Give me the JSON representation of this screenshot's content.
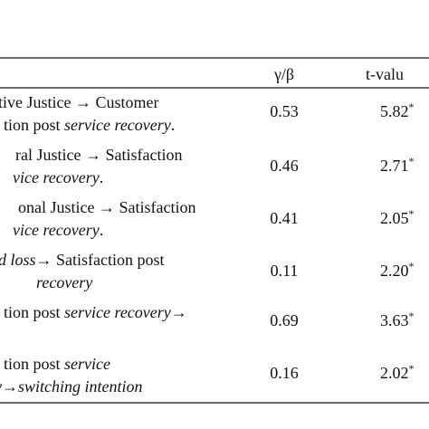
{
  "table": {
    "header": [
      "γ/β",
      "t-valu"
    ],
    "rows": [
      {
        "label": [
          [
            {
              "text": "tive Justice → Customer"
            }
          ],
          [
            {
              "text": "tion post "
            },
            {
              "text": "service recovery",
              "italic": true
            },
            {
              "text": "."
            }
          ]
        ],
        "coef": "0.53",
        "t": "5.82",
        "sig": "*"
      },
      {
        "label": [
          [
            {
              "text": "ral Justice → Satisfaction"
            }
          ],
          [
            {
              "text": "vice recovery",
              "italic": true
            },
            {
              "text": "."
            }
          ]
        ],
        "coef": "0.46",
        "t": "2.71",
        "sig": "*"
      },
      {
        "label": [
          [
            {
              "text": "onal Justice → Satisfaction"
            }
          ],
          [
            {
              "text": "vice recovery",
              "italic": true
            },
            {
              "text": "."
            }
          ]
        ],
        "coef": "0.41",
        "t": "2.05",
        "sig": "*"
      },
      {
        "label": [
          [
            {
              "text": "d loss",
              "italic": true
            },
            {
              "text": "→ Satisfaction post"
            }
          ],
          [
            {
              "text": "recovery",
              "italic": true
            }
          ]
        ],
        "coef": "0.11",
        "t": "2.20",
        "sig": "*"
      },
      {
        "label": [
          [
            {
              "text": "tion post "
            },
            {
              "text": "service recovery",
              "italic": true
            },
            {
              "text": "→"
            }
          ]
        ],
        "coef": "0.69",
        "t": "3.63",
        "sig": "*"
      },
      {
        "label": [
          [
            {
              "text": "tion post "
            },
            {
              "text": "service",
              "italic": true
            }
          ],
          [
            {
              "text": "y→switching intention",
              "italic": true
            }
          ]
        ],
        "coef": "0.16",
        "t": "2.02",
        "sig": "*"
      }
    ]
  }
}
